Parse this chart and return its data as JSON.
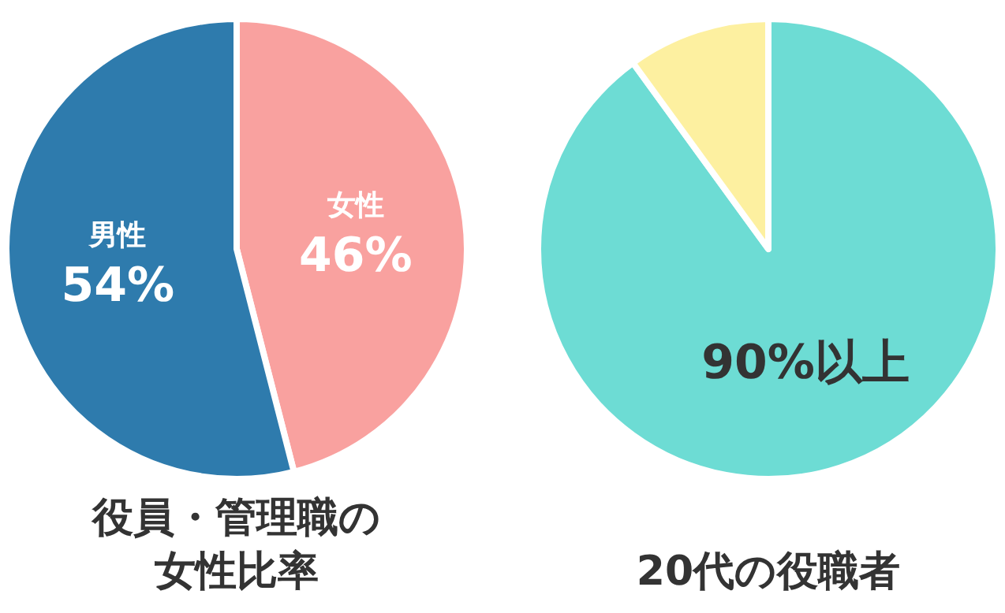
{
  "chart_data": [
    {
      "type": "pie",
      "title": "役員・管理職の女性比率",
      "categories": [
        "女性",
        "男性"
      ],
      "values": [
        46,
        54
      ],
      "colors": [
        "#f9a19f",
        "#2e7bad"
      ],
      "value_labels": [
        "46%",
        "54%"
      ]
    },
    {
      "type": "pie",
      "title": "20代の役職者",
      "categories": [
        null,
        null
      ],
      "values": [
        90,
        10
      ],
      "colors": [
        "#6ddcd4",
        "#fdf0a0"
      ],
      "value_labels": [
        "90%以上",
        null
      ]
    }
  ]
}
